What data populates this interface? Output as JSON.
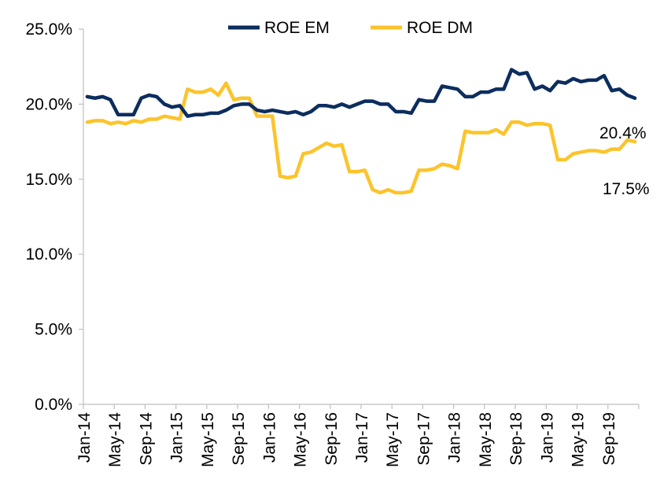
{
  "chart_data": {
    "type": "line",
    "title": "",
    "xlabel": "",
    "ylabel": "",
    "ylim": [
      0,
      25
    ],
    "y_ticks": [
      "0.0%",
      "5.0%",
      "10.0%",
      "15.0%",
      "20.0%",
      "25.0%"
    ],
    "y_tick_values": [
      0,
      5,
      10,
      15,
      20,
      25
    ],
    "x_tick_labels": [
      "Jan-14",
      "May-14",
      "Sep-14",
      "Jan-15",
      "May-15",
      "Sep-15",
      "Jan-16",
      "May-16",
      "Sep-16",
      "Jan-17",
      "May-17",
      "Sep-17",
      "Jan-18",
      "May-18",
      "Sep-18",
      "Jan-19",
      "May-19",
      "Sep-19"
    ],
    "x_tick_indices": [
      0,
      4,
      8,
      12,
      16,
      20,
      24,
      28,
      32,
      36,
      40,
      44,
      48,
      52,
      56,
      60,
      64,
      68
    ],
    "n_points": 72,
    "legend_position": "top-center",
    "series": [
      {
        "name": "ROE EM",
        "color": "#0c2d5e",
        "end_label": "20.4%",
        "values": [
          20.5,
          20.4,
          20.5,
          20.3,
          19.3,
          19.3,
          19.3,
          20.4,
          20.6,
          20.5,
          20.0,
          19.8,
          19.9,
          19.2,
          19.3,
          19.3,
          19.4,
          19.4,
          19.6,
          19.9,
          20.0,
          20.0,
          19.6,
          19.5,
          19.6,
          19.5,
          19.4,
          19.5,
          19.3,
          19.5,
          19.9,
          19.9,
          19.8,
          20.0,
          19.8,
          20.0,
          20.2,
          20.2,
          20.0,
          20.0,
          19.5,
          19.5,
          19.4,
          20.3,
          20.2,
          20.2,
          21.2,
          21.1,
          21.0,
          20.5,
          20.5,
          20.8,
          20.8,
          21.0,
          21.0,
          22.3,
          22.0,
          22.1,
          21.0,
          21.2,
          20.9,
          21.5,
          21.4,
          21.7,
          21.5,
          21.6,
          21.6,
          21.9,
          20.9,
          21.0,
          20.6,
          20.4
        ]
      },
      {
        "name": "ROE DM",
        "color": "#fcc42b",
        "end_label": "17.5%",
        "values": [
          18.8,
          18.9,
          18.9,
          18.7,
          18.8,
          18.7,
          18.9,
          18.8,
          19.0,
          19.0,
          19.2,
          19.1,
          19.0,
          21.0,
          20.8,
          20.8,
          21.0,
          20.6,
          21.4,
          20.3,
          20.4,
          20.4,
          19.2,
          19.2,
          19.2,
          15.2,
          15.1,
          15.2,
          16.7,
          16.8,
          17.1,
          17.4,
          17.2,
          17.3,
          15.5,
          15.5,
          15.6,
          14.3,
          14.1,
          14.3,
          14.1,
          14.1,
          14.2,
          15.6,
          15.6,
          15.7,
          16.0,
          15.9,
          15.7,
          18.2,
          18.1,
          18.1,
          18.1,
          18.3,
          18.0,
          18.8,
          18.8,
          18.6,
          18.7,
          18.7,
          18.6,
          16.3,
          16.3,
          16.7,
          16.8,
          16.9,
          16.9,
          16.8,
          17.0,
          17.0,
          17.6,
          17.5
        ]
      }
    ]
  }
}
